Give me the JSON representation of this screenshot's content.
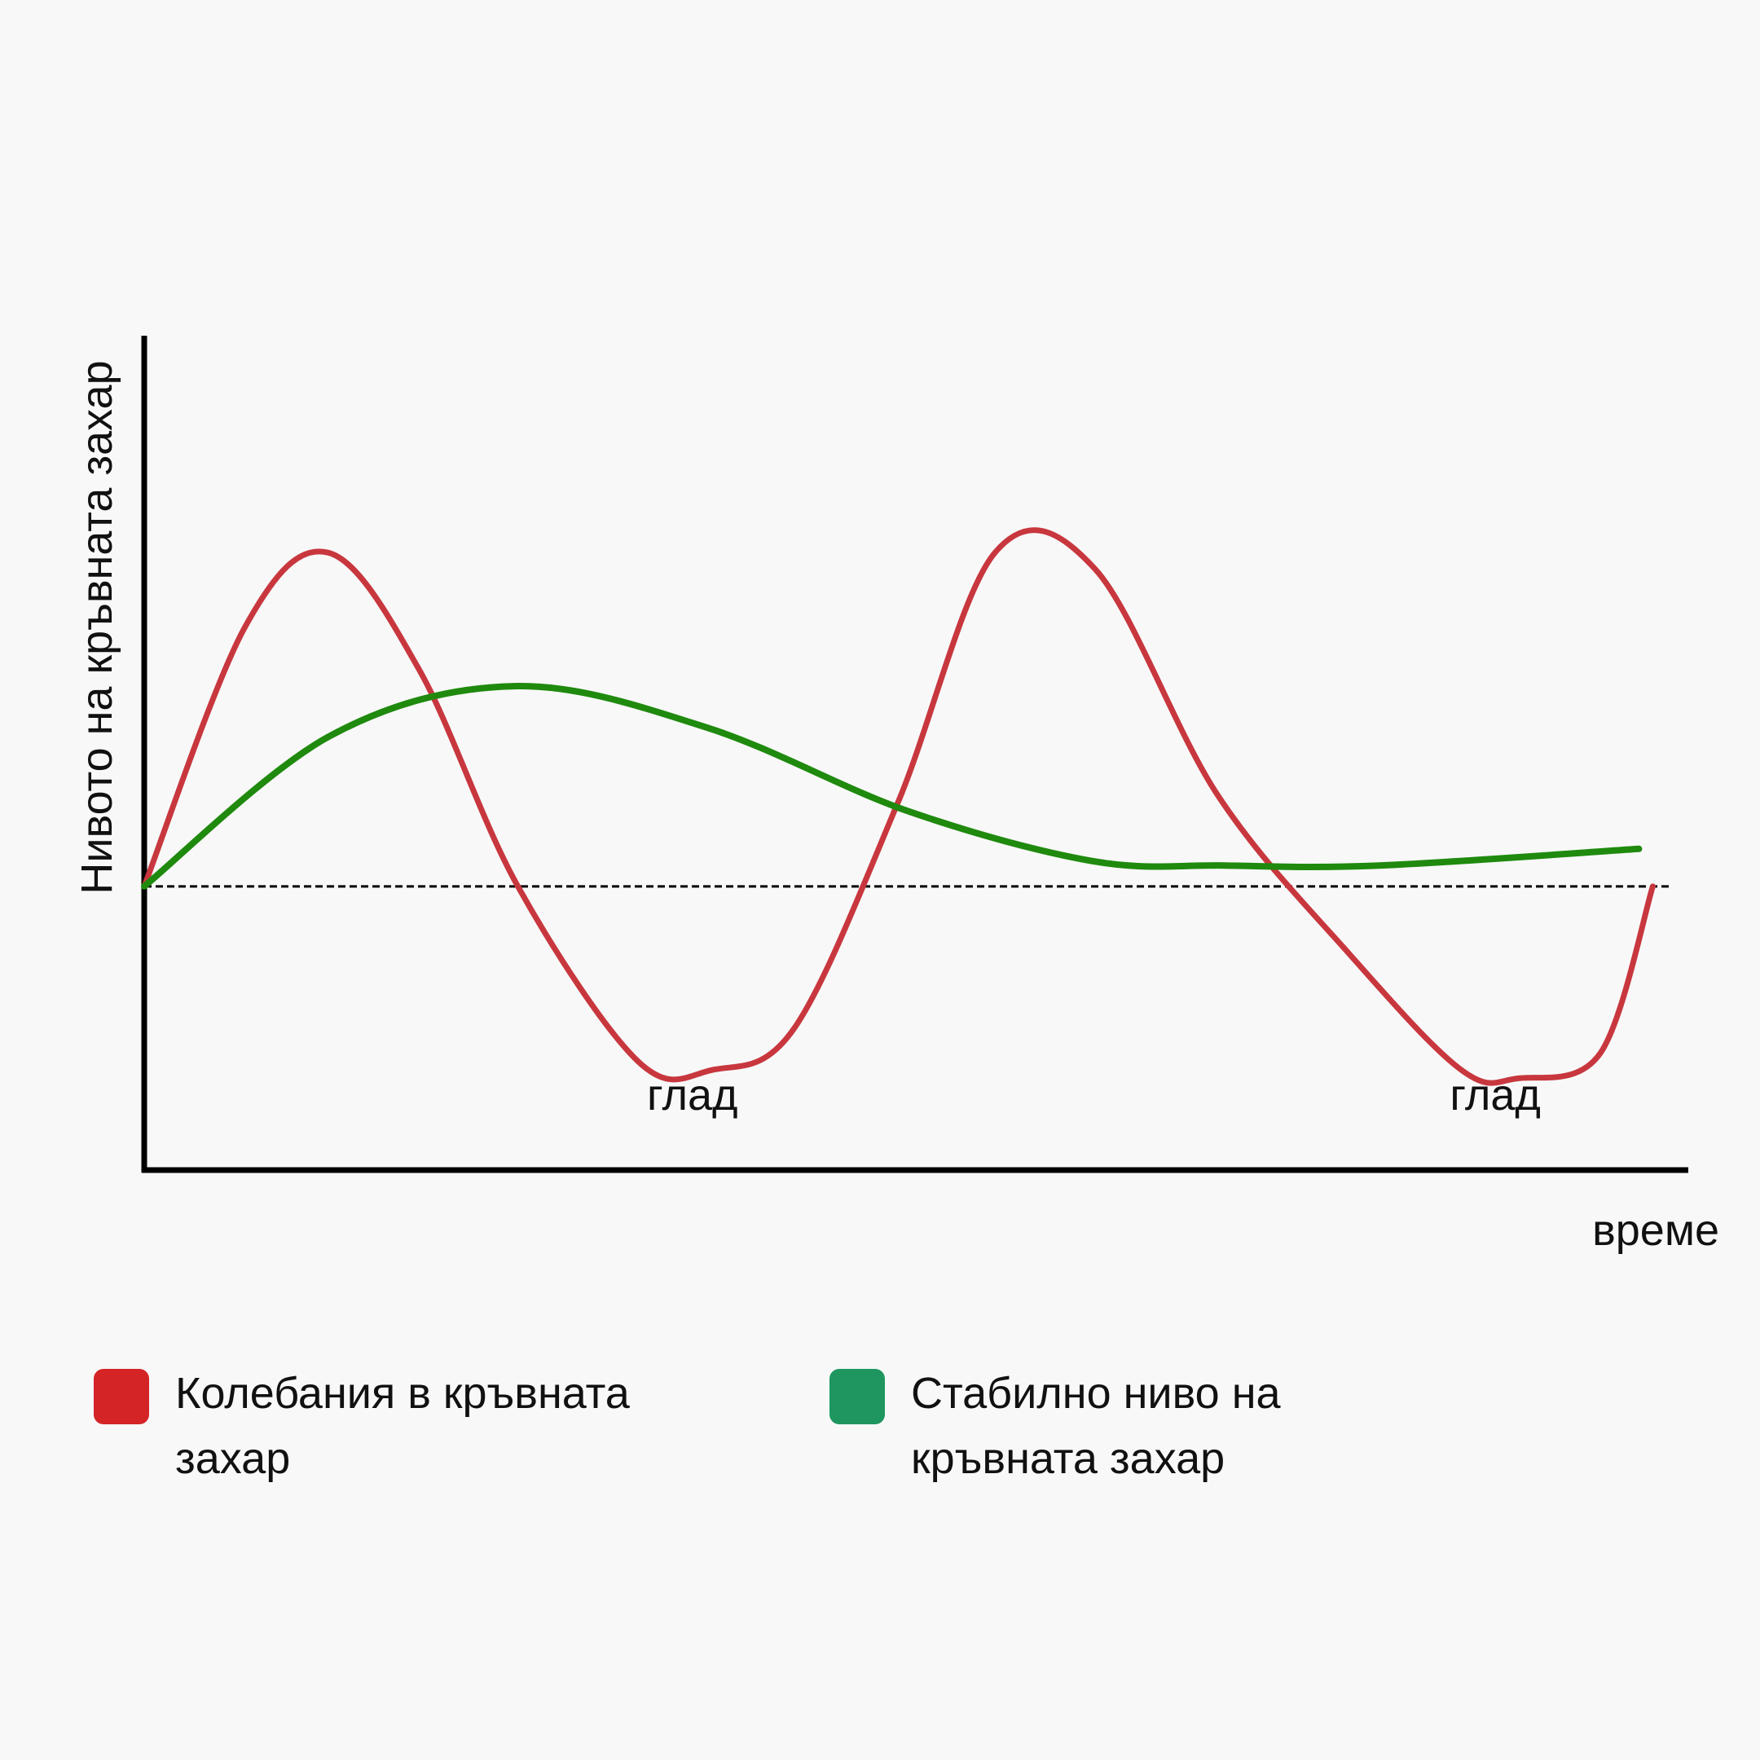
{
  "chart_data": {
    "type": "line",
    "title": "",
    "xlabel": "време",
    "ylabel": "Нивото на кръвната захар",
    "xlim": [
      0,
      100
    ],
    "ylim": [
      0,
      100
    ],
    "ticks": "none",
    "grid": false,
    "reference_line": {
      "y": 34,
      "style": "dashed",
      "color": "#000000"
    },
    "annotations": [
      {
        "text": "глад",
        "x": 35.5,
        "y": 9
      },
      {
        "text": "глад",
        "x": 87.5,
        "y": 9
      }
    ],
    "series": [
      {
        "name": "Колебания в кръвната захар",
        "color": "#c8373e",
        "x": [
          0,
          6.5,
          11.9,
          17.8,
          24.2,
          32.0,
          36.8,
          42.1,
          48.8,
          55.1,
          61.6,
          69.5,
          78.0,
          85.3,
          89.0,
          94.3,
          97.7
        ],
        "y": [
          34,
          65,
          74,
          60,
          34,
          13,
          12,
          17,
          44,
          74,
          72,
          45,
          26,
          12,
          11,
          14,
          34
        ]
      },
      {
        "name": "Стабилно ниво на кръвната захар",
        "color": "#1f8a0e",
        "x": [
          0,
          12.0,
          24.0,
          36.5,
          49.5,
          61.5,
          70.0,
          80.0,
          96.8
        ],
        "y": [
          34,
          52,
          58,
          53,
          43,
          37,
          36.5,
          36.5,
          38.5
        ]
      }
    ]
  },
  "legend": [
    {
      "label": "Колебания в кръвната захар",
      "color": "#d42426"
    },
    {
      "label": "Стабилно ниво на кръвната захар",
      "color": "#1f9660"
    }
  ]
}
